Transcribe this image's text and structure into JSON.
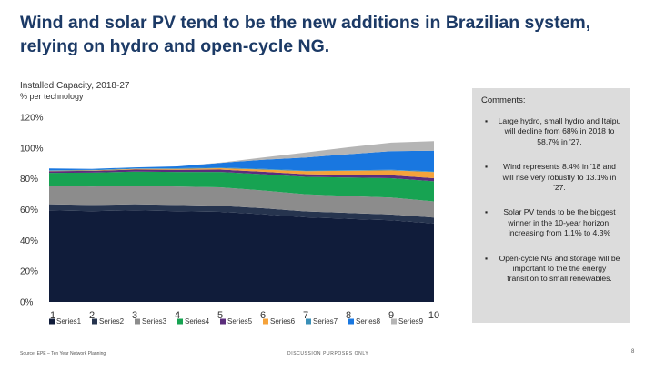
{
  "slide": {
    "title": "Wind and solar PV tend to be the new additions in Brazilian system, relying on hydro and open-cycle NG.",
    "chart_title": "Installed Capacity, 2018-27",
    "chart_subtitle": "% per technology",
    "footer_source": "Source: EPE – Ten Year Network Planning",
    "footer_mid": "DISCUSSION PURPOSES ONLY",
    "page_number": "8"
  },
  "comments": {
    "title": "Comments:",
    "bullet_symbol": "▪",
    "items": [
      "Large hydro, small hydro and Itaipu will decline from 68% in 2018 to 58.7% in '27.",
      "Wind represents 8.4% in '18 and will rise very robustly to 13.1% in '27.",
      "Solar PV tends to be the biggest winner in the 10-year horizon, increasing from 1.1% to 4.3%",
      "Open-cycle NG and storage will be important to the the energy transition to small renewables."
    ]
  },
  "chart_data": {
    "type": "area",
    "stacked": true,
    "categories": [
      "1",
      "2",
      "3",
      "4",
      "5",
      "6",
      "7",
      "8",
      "9",
      "10"
    ],
    "ylim": [
      0,
      120
    ],
    "yticks": [
      0,
      20,
      40,
      60,
      80,
      100,
      120
    ],
    "ytick_labels": [
      "0%",
      "20%",
      "40%",
      "60%",
      "80%",
      "100%",
      "120%"
    ],
    "xlabel": "",
    "ylabel": "",
    "legend_position": "bottom",
    "series": [
      {
        "name": "Series1",
        "color": "#101c3a",
        "values": [
          59.5,
          59,
          59.5,
          59,
          58.5,
          57,
          55,
          54,
          53,
          51
        ]
      },
      {
        "name": "Series2",
        "color": "#26344e",
        "values": [
          4,
          4,
          4,
          4,
          4,
          3.9,
          3.8,
          3.8,
          3.8,
          3.8
        ]
      },
      {
        "name": "Series3",
        "color": "#8c8c8c",
        "values": [
          12,
          12,
          12,
          12,
          12,
          11.5,
          11.2,
          11,
          11,
          10.5
        ]
      },
      {
        "name": "Series4",
        "color": "#17a352",
        "values": [
          8.4,
          9,
          9.2,
          9.5,
          10,
          10.6,
          11.3,
          12,
          12.6,
          13.1
        ]
      },
      {
        "name": "Series5",
        "color": "#5b2d7c",
        "values": [
          1.1,
          1.2,
          1.3,
          1.4,
          1.5,
          1.6,
          1.7,
          1.8,
          1.9,
          2
        ]
      },
      {
        "name": "Series6",
        "color": "#f5a23a",
        "values": [
          0.2,
          0.3,
          0.4,
          0.6,
          0.9,
          1.4,
          2,
          2.6,
          3.2,
          4
        ]
      },
      {
        "name": "Series7",
        "color": "#3a8fb7",
        "values": [
          0.4,
          0.4,
          0.4,
          0.4,
          0.4,
          0.4,
          0.4,
          0.4,
          0.4,
          0.4
        ]
      },
      {
        "name": "Series8",
        "color": "#1977e0",
        "values": [
          1.1,
          0.6,
          0.6,
          1.2,
          3,
          6,
          8.5,
          10.4,
          12.1,
          13.5
        ]
      },
      {
        "name": "Series9",
        "color": "#b5b5b5",
        "values": [
          0,
          0,
          0,
          0,
          0.2,
          1.5,
          3.2,
          4.5,
          5.5,
          6.2
        ]
      }
    ]
  }
}
